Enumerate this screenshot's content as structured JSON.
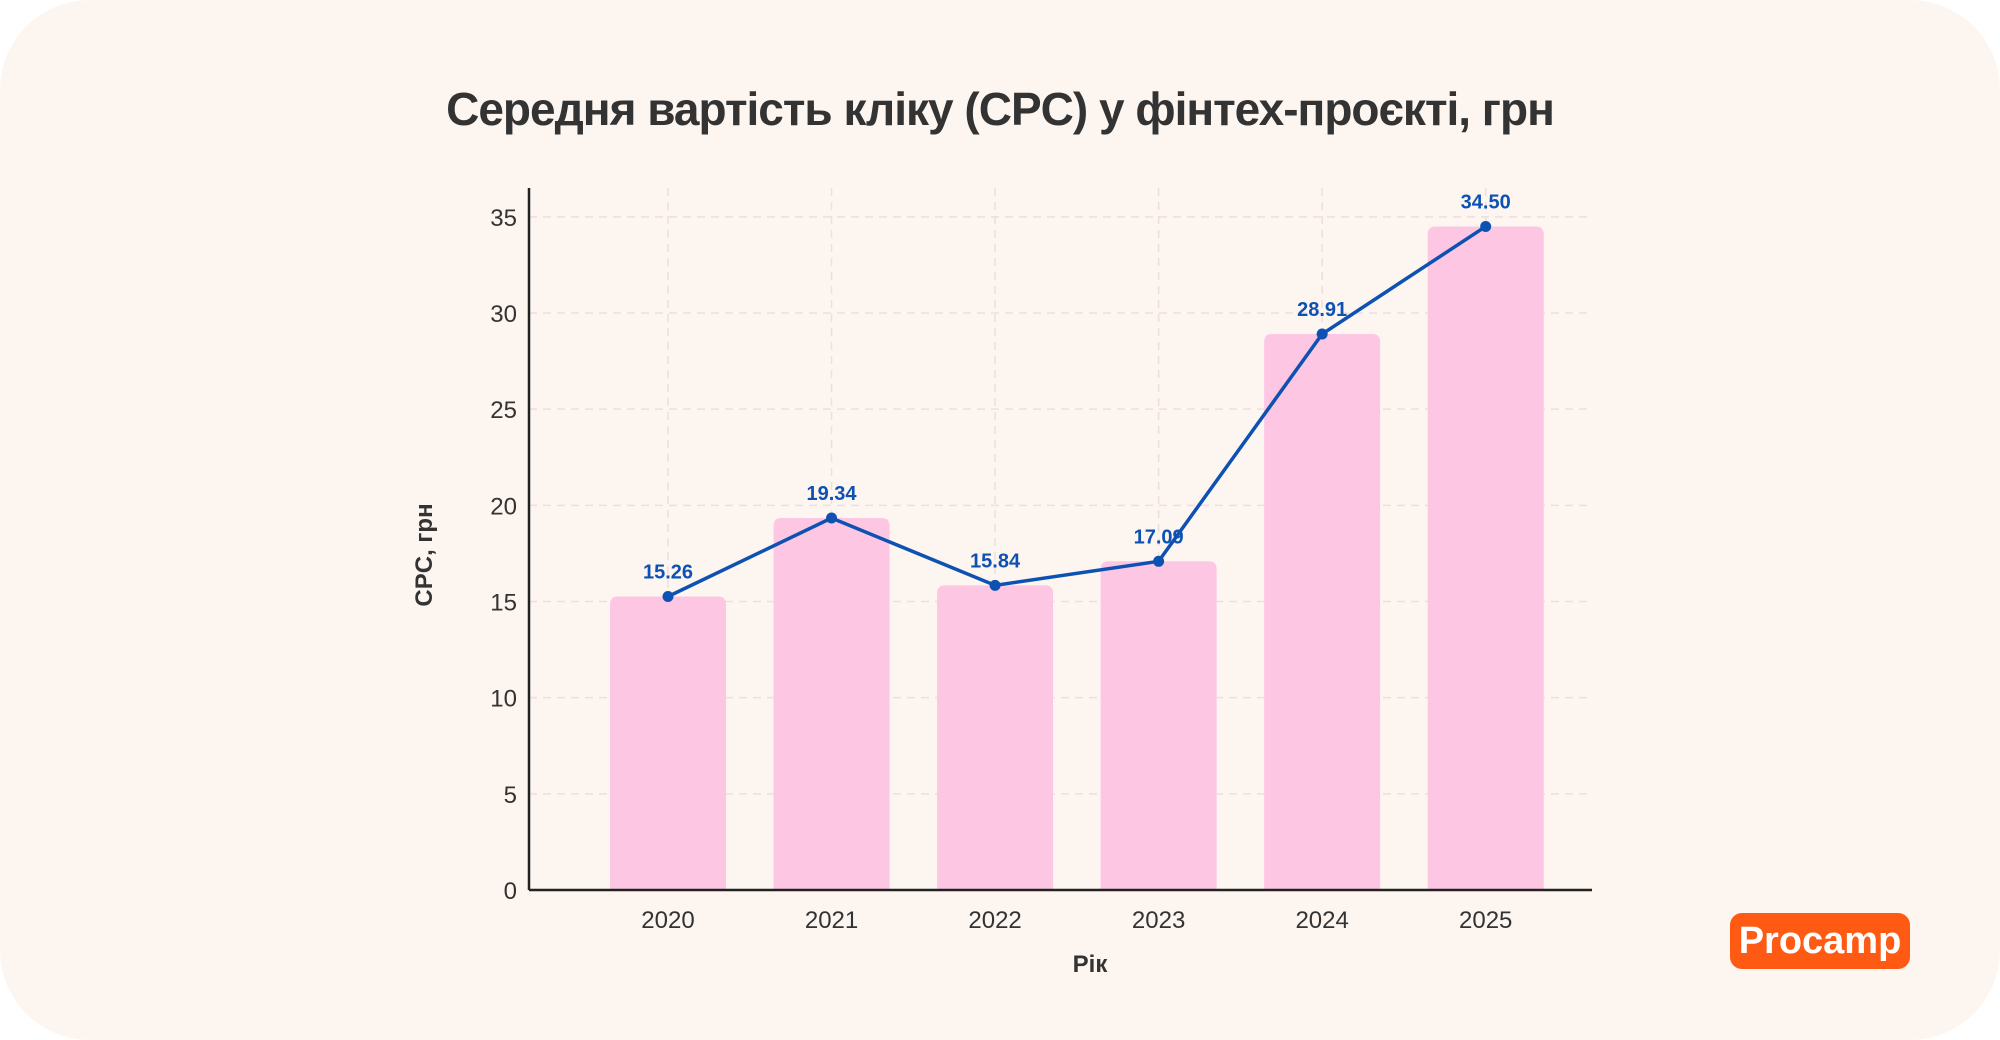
{
  "logo_text": "Procamp",
  "chart_data": {
    "type": "bar+line",
    "title": "Середня вартість кліку (CPC) у фінтех-проєкті, грн",
    "xlabel": "Рік",
    "ylabel": "CPC, грн",
    "categories": [
      "2020",
      "2021",
      "2022",
      "2023",
      "2024",
      "2025"
    ],
    "values": [
      15.26,
      19.34,
      15.84,
      17.09,
      28.91,
      34.5
    ],
    "value_labels": [
      "15.26",
      "19.34",
      "15.84",
      "17.09",
      "28.91",
      "34.50"
    ],
    "yticks": [
      0,
      5,
      10,
      15,
      20,
      25,
      30,
      35
    ],
    "ylim": [
      0,
      36.5
    ],
    "grid": true,
    "colors": {
      "bar": "#fdc6e3",
      "line": "#0d52b3",
      "axis": "#222222",
      "grid": "#eedede"
    }
  }
}
